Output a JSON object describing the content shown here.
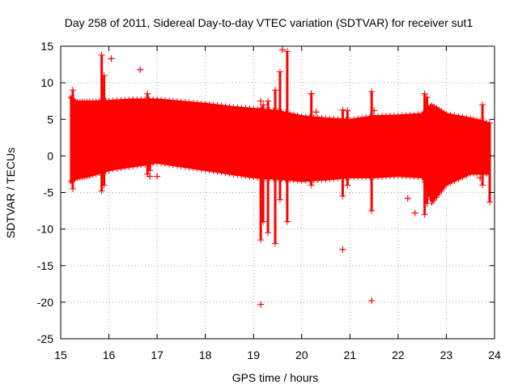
{
  "chart_data": {
    "type": "scatter",
    "title": "Day 258 of 2011, Sidereal Day-to-day VTEC variation (SDTVAR) for receiver sut1",
    "xlabel": "GPS time / hours",
    "ylabel": "SDTVAR / TECUs",
    "xlim": [
      15,
      24
    ],
    "ylim": [
      -25,
      15
    ],
    "xticks": [
      15,
      16,
      17,
      18,
      19,
      20,
      21,
      22,
      23,
      24
    ],
    "yticks": [
      -25,
      -20,
      -15,
      -10,
      -5,
      0,
      5,
      10,
      15
    ],
    "xtick_labels": [
      "15",
      "16",
      "17",
      "18",
      "19",
      "20",
      "21",
      "22",
      "23",
      "24"
    ],
    "ytick_labels": [
      "-25",
      "-20",
      "-15",
      "-10",
      "-5",
      "0",
      "5",
      "10",
      "15"
    ],
    "grid": true,
    "grid_style": "dotted",
    "series_color": "#ff0000",
    "marker": "plus",
    "series": [
      {
        "name": "sut1",
        "band": {
          "x": [
            15.2,
            15.3,
            15.6,
            16.0,
            16.5,
            17.0,
            17.5,
            18.0,
            18.5,
            19.0,
            19.5,
            20.0,
            20.5,
            21.0,
            21.5,
            22.0,
            22.5,
            22.7,
            23.0,
            23.5,
            23.9
          ],
          "upper": [
            8.0,
            7.5,
            7.5,
            7.6,
            7.8,
            7.8,
            7.5,
            7.2,
            6.8,
            6.5,
            6.2,
            5.5,
            5.2,
            5.0,
            5.5,
            5.6,
            5.8,
            7.0,
            5.8,
            5.2,
            4.5
          ],
          "lower": [
            -3.5,
            -3.2,
            -2.8,
            -2.0,
            -1.5,
            -1.0,
            -1.5,
            -2.0,
            -2.5,
            -3.0,
            -3.2,
            -3.5,
            -3.3,
            -3.0,
            -3.0,
            -2.8,
            -3.0,
            -6.5,
            -4.0,
            -2.5,
            -2.5
          ]
        },
        "spikes": [
          {
            "x": 15.25,
            "lo": -4.5,
            "hi": 9.0
          },
          {
            "x": 15.85,
            "lo": -4.8,
            "hi": 13.8
          },
          {
            "x": 15.9,
            "lo": -4.0,
            "hi": 11.0
          },
          {
            "x": 16.8,
            "lo": -2.5,
            "hi": 8.5
          },
          {
            "x": 16.85,
            "lo": -2.0,
            "hi": 7.5
          },
          {
            "x": 19.15,
            "lo": -11.5,
            "hi": 6.5
          },
          {
            "x": 19.2,
            "lo": -9.0,
            "hi": 7.0
          },
          {
            "x": 19.3,
            "lo": -10.5,
            "hi": 7.5
          },
          {
            "x": 19.45,
            "lo": -12.0,
            "hi": 9.0
          },
          {
            "x": 19.55,
            "lo": -6.0,
            "hi": 11.5
          },
          {
            "x": 19.7,
            "lo": -9.0,
            "hi": 14.3
          },
          {
            "x": 20.2,
            "lo": -4.0,
            "hi": 8.5
          },
          {
            "x": 20.85,
            "lo": -5.5,
            "hi": 6.3
          },
          {
            "x": 20.95,
            "lo": -4.0,
            "hi": 6.2
          },
          {
            "x": 21.45,
            "lo": -7.5,
            "hi": 8.8
          },
          {
            "x": 22.55,
            "lo": -8.0,
            "hi": 8.5
          },
          {
            "x": 22.6,
            "lo": -6.5,
            "hi": 8.0
          },
          {
            "x": 23.75,
            "lo": -4.0,
            "hi": 7.0
          },
          {
            "x": 23.9,
            "lo": -6.3,
            "hi": 4.5
          }
        ],
        "points": [
          {
            "x": 16.05,
            "y": 13.3
          },
          {
            "x": 16.65,
            "y": 11.8
          },
          {
            "x": 16.0,
            "y": -2.0
          },
          {
            "x": 16.85,
            "y": -2.8
          },
          {
            "x": 17.0,
            "y": -2.8
          },
          {
            "x": 19.15,
            "y": -20.3
          },
          {
            "x": 19.6,
            "y": 14.5
          },
          {
            "x": 19.15,
            "y": 7.5
          },
          {
            "x": 20.2,
            "y": 8.5
          },
          {
            "x": 20.3,
            "y": 6.0
          },
          {
            "x": 20.85,
            "y": -12.8
          },
          {
            "x": 21.45,
            "y": -19.8
          },
          {
            "x": 21.5,
            "y": 6.2
          },
          {
            "x": 22.2,
            "y": -5.8
          },
          {
            "x": 22.35,
            "y": -7.8
          },
          {
            "x": 23.0,
            "y": 5.5
          },
          {
            "x": 23.35,
            "y": -2.0
          },
          {
            "x": 23.7,
            "y": -3.0
          }
        ]
      }
    ]
  }
}
